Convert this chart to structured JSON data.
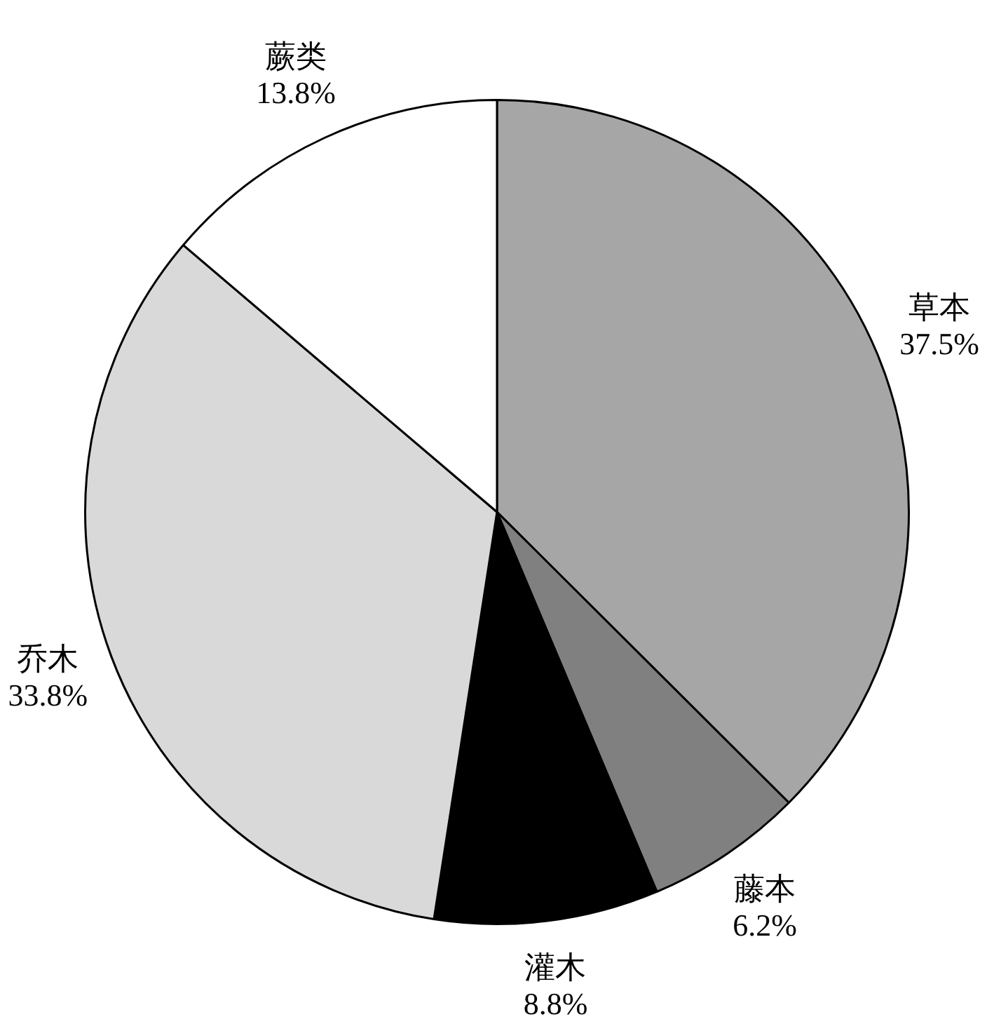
{
  "chart_data": {
    "type": "pie",
    "categories": [
      "草本",
      "藤本",
      "灌木",
      "乔木",
      "蕨类"
    ],
    "values": [
      37.5,
      6.2,
      8.8,
      33.8,
      13.8
    ],
    "colors": [
      "#a6a6a6",
      "#808080",
      "#000000",
      "#d9d9d9",
      "#ffffff"
    ],
    "value_labels": [
      "37.5%",
      "6.2%",
      "8.8%",
      "33.8%",
      "13.8%"
    ],
    "legend": false
  }
}
